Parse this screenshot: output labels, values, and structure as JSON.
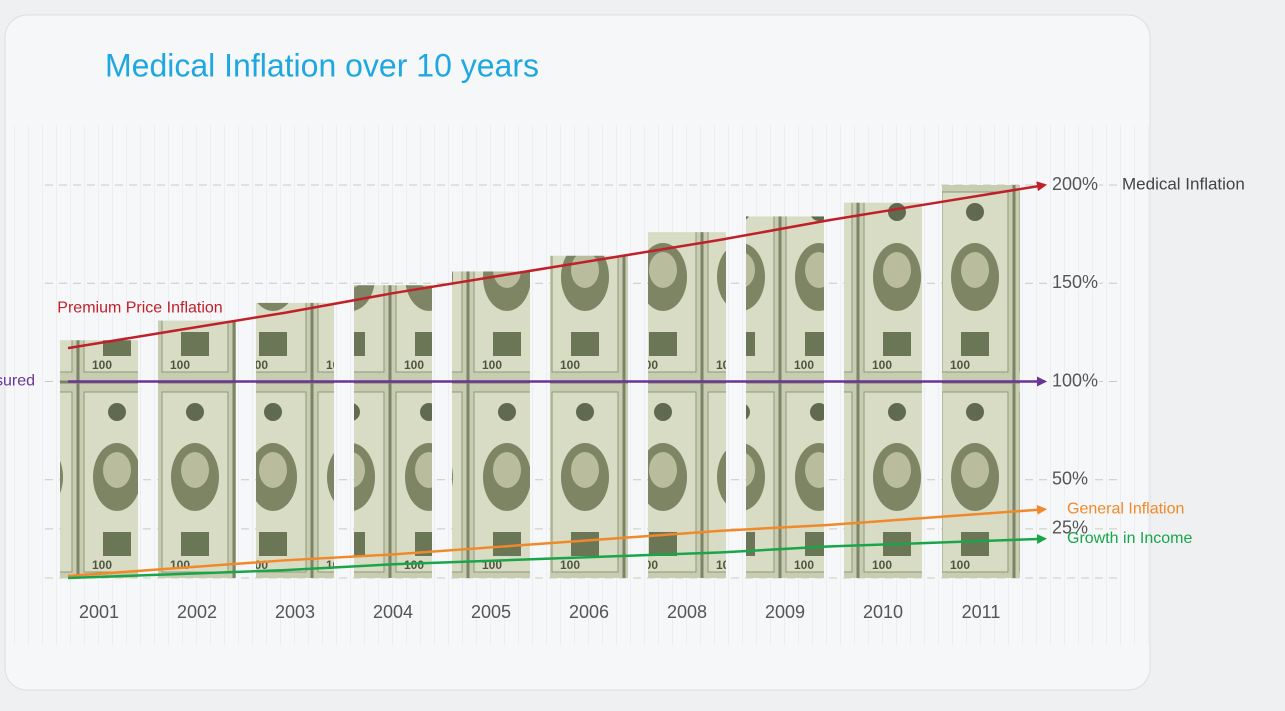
{
  "chart_data": {
    "type": "bar",
    "title": "Medical Inflation over 10 years",
    "categories": [
      "2001",
      "2002",
      "2003",
      "2004",
      "2005",
      "2006",
      "2008",
      "2009",
      "2010",
      "2011"
    ],
    "values": [
      121,
      131,
      140,
      149,
      156,
      164,
      176,
      184,
      191,
      200
    ],
    "ylim": [
      0,
      200
    ],
    "yticks": [
      {
        "value": 200,
        "label": "200%"
      },
      {
        "value": 150,
        "label": "150%"
      },
      {
        "value": 100,
        "label": "100%"
      },
      {
        "value": 50,
        "label": "50%"
      },
      {
        "value": 25,
        "label": "25%"
      }
    ],
    "grid": true,
    "annotation": "Medical Inflation",
    "series": [
      {
        "name": "Premium Price Inflation",
        "color": "#c0202a",
        "values": [
          117,
          126,
          135,
          145,
          154,
          163,
          172,
          182,
          191,
          200
        ]
      },
      {
        "name": "Insured",
        "color": "#6a3596",
        "values": [
          100,
          100,
          100,
          100,
          100,
          100,
          100,
          100,
          100,
          100
        ]
      },
      {
        "name": "General Inflation",
        "color": "#f0892a",
        "values": [
          1,
          5,
          9,
          12,
          16,
          20,
          24,
          27,
          31,
          35
        ]
      },
      {
        "name": "Growth in Income",
        "color": "#1aa54a",
        "values": [
          0,
          2,
          4,
          7,
          9,
          11,
          13,
          16,
          18,
          20
        ]
      }
    ]
  }
}
